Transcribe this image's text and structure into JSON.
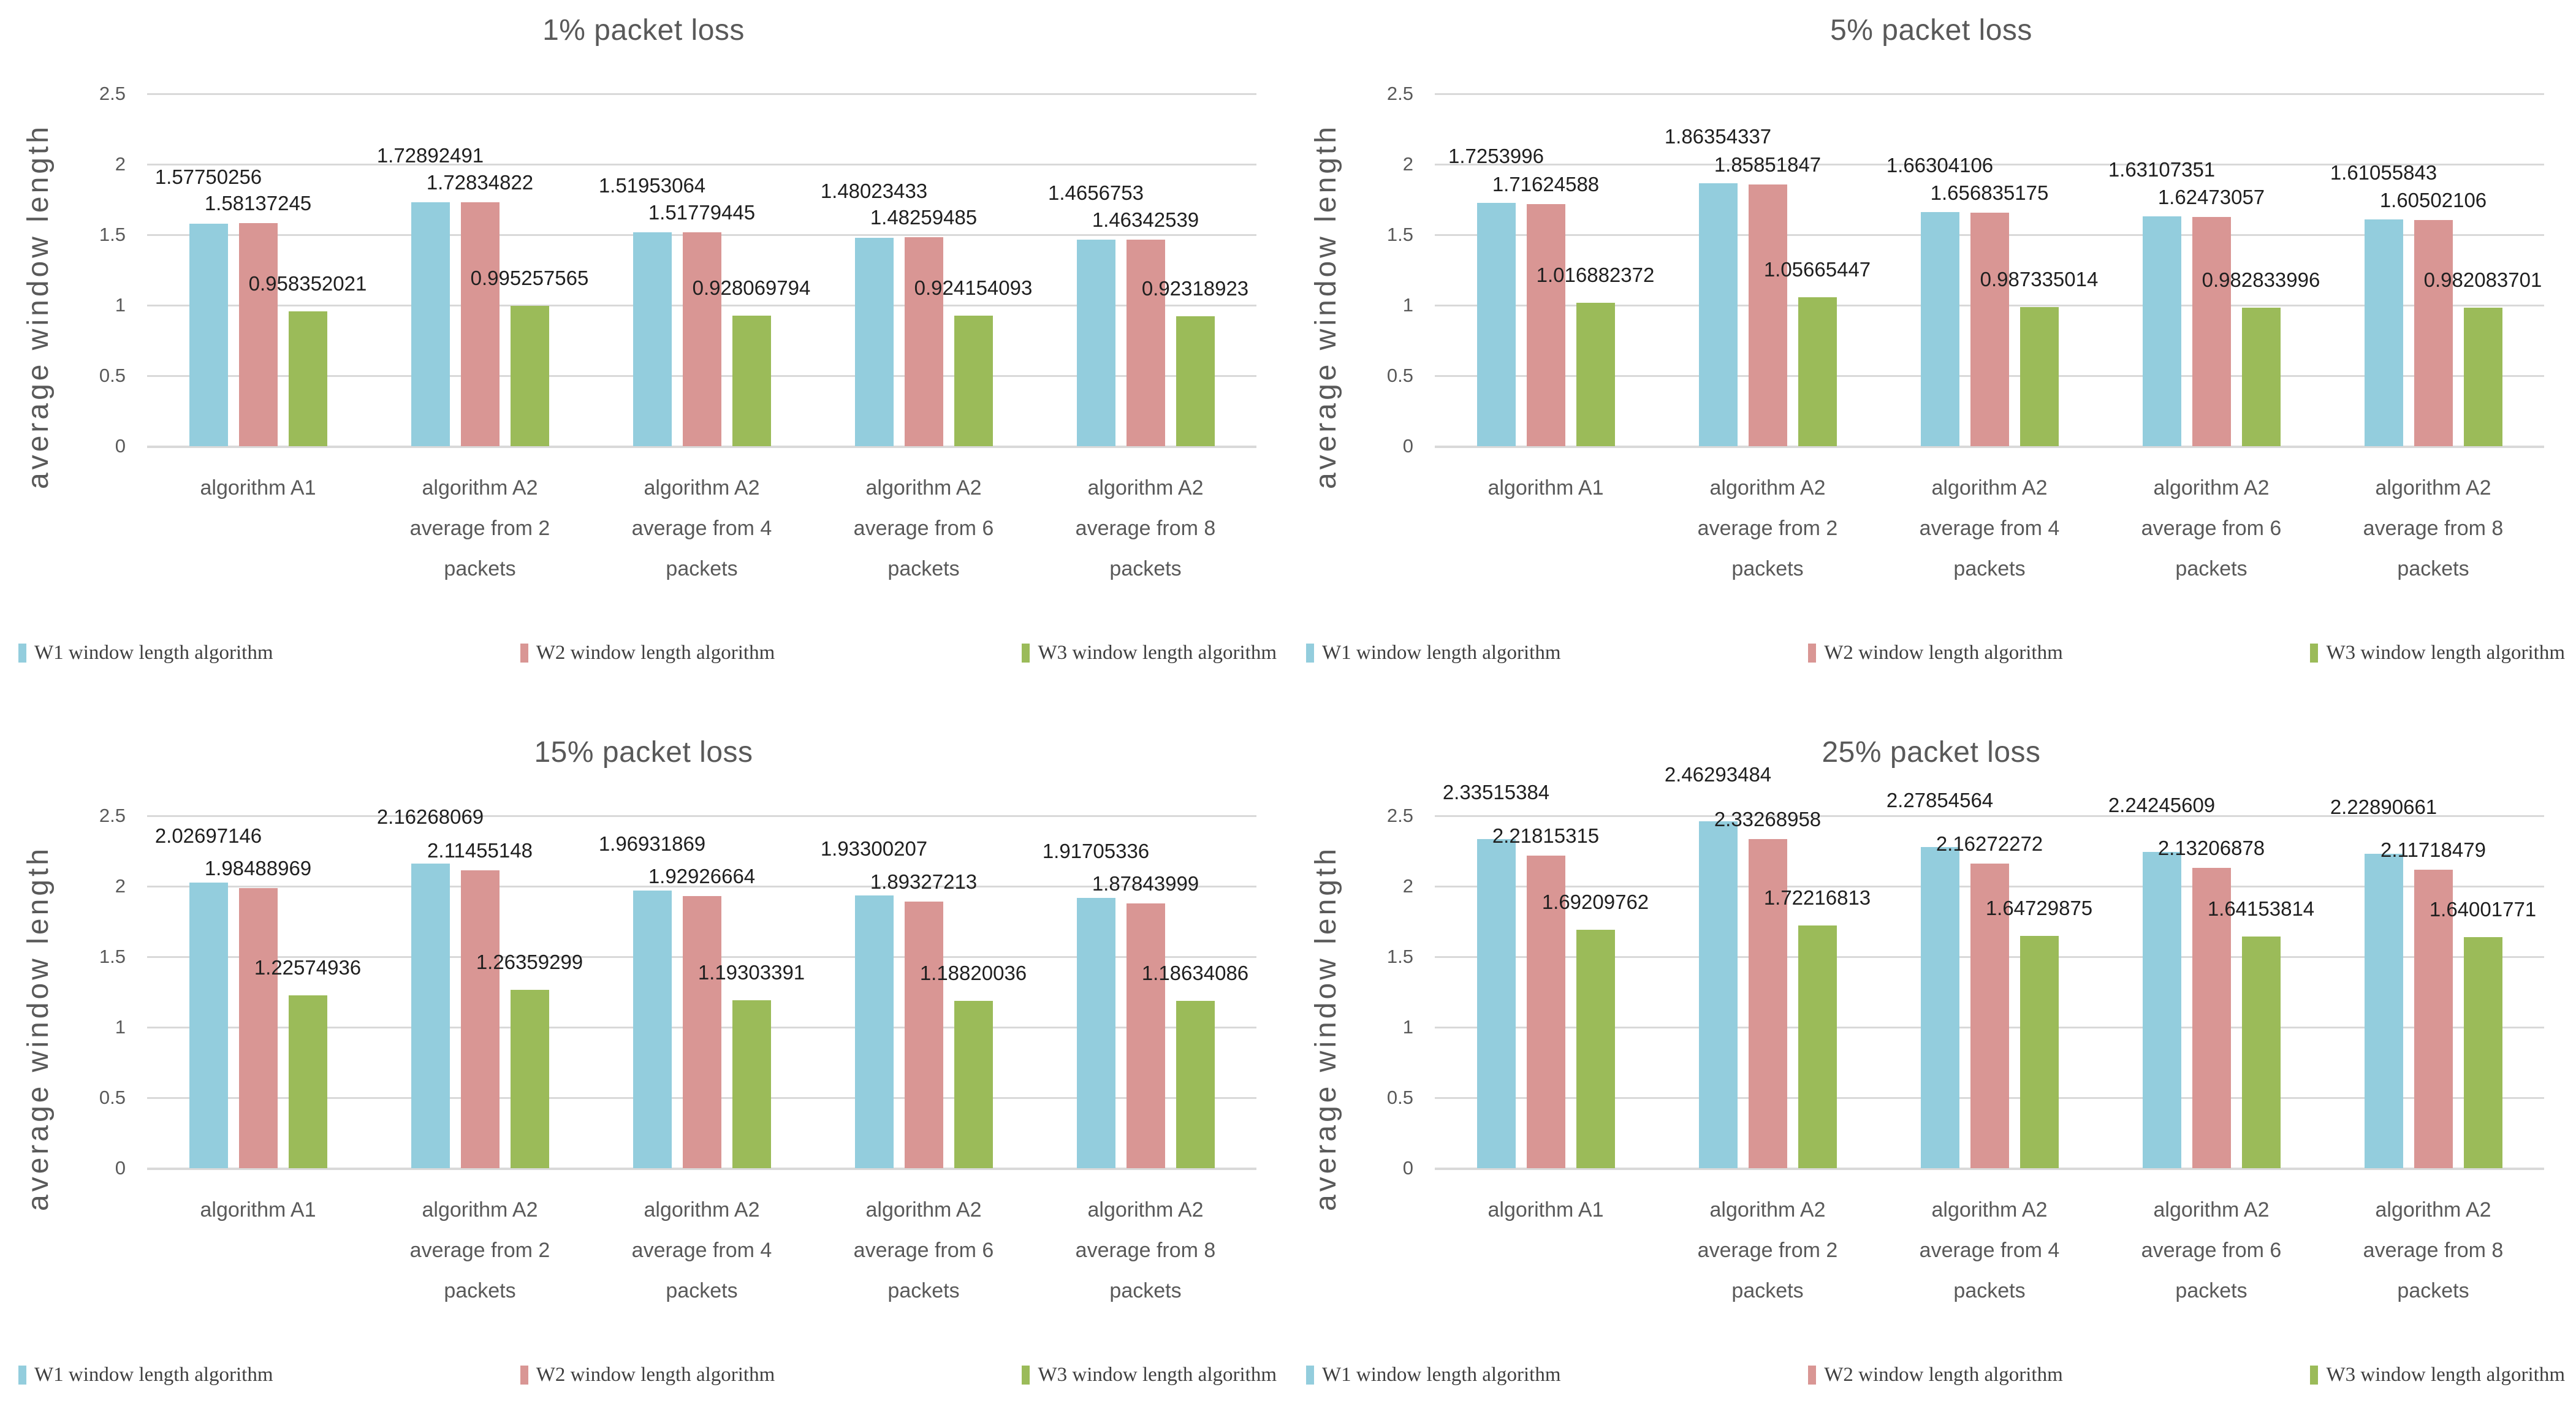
{
  "page_background": "#ffffff",
  "colors": {
    "w1_series": "#93CDDD",
    "w2_series": "#D99694",
    "w3_series": "#9BBB59",
    "gridline": "#D9D9D9",
    "axis_line": "#D9D9D9",
    "heading_text": "#595959",
    "data_label_text": "#1f1f1f",
    "legend_text": "#3f3f3f"
  },
  "y_axis": {
    "title": "average window length",
    "tick_labels": [
      "2.5",
      "2",
      "1.5",
      "1",
      "0.5",
      "0"
    ],
    "min": 0,
    "max": 2.5,
    "step": 0.5
  },
  "legend_labels": [
    "W1 window length algorithm",
    "W2 window length algorithm",
    "W3 window length algorithm"
  ],
  "chart_data": [
    {
      "type": "bar",
      "title": "1% packet loss",
      "xlabel": "",
      "ylabel": "average window length",
      "ylim": [
        0,
        2.5
      ],
      "grid": true,
      "legend_position": "bottom",
      "categories": [
        [
          "algorithm A1"
        ],
        [
          "algorithm A2",
          "average from 2",
          "packets"
        ],
        [
          "algorithm A2",
          "average from 4",
          "packets"
        ],
        [
          "algorithm A2",
          "average from 6",
          "packets"
        ],
        [
          "algorithm A2",
          "average from 8",
          "packets"
        ]
      ],
      "series": [
        {
          "name": "W1 window length algorithm",
          "color": "#93CDDD",
          "values": [
            1.57750256,
            1.72892491,
            1.51953064,
            1.48023433,
            1.4656753
          ]
        },
        {
          "name": "W2 window length algorithm",
          "color": "#D99694",
          "values": [
            1.58137245,
            1.72834822,
            1.51779445,
            1.48259485,
            1.46342539
          ]
        },
        {
          "name": "W3 window length algorithm",
          "color": "#9BBB59",
          "values": [
            0.958352021,
            0.995257565,
            0.928069794,
            0.924154093,
            0.92318923
          ]
        }
      ]
    },
    {
      "type": "bar",
      "title": "5% packet loss",
      "xlabel": "",
      "ylabel": "average window length",
      "ylim": [
        0,
        2.5
      ],
      "grid": true,
      "legend_position": "bottom",
      "categories": [
        [
          "algorithm A1"
        ],
        [
          "algorithm A2",
          "average from 2",
          "packets"
        ],
        [
          "algorithm A2",
          "average from 4",
          "packets"
        ],
        [
          "algorithm A2",
          "average from 6",
          "packets"
        ],
        [
          "algorithm A2",
          "average from 8",
          "packets"
        ]
      ],
      "series": [
        {
          "name": "W1 window length algorithm",
          "color": "#93CDDD",
          "values": [
            1.7253996,
            1.86354337,
            1.66304106,
            1.63107351,
            1.61055843
          ]
        },
        {
          "name": "W2 window length algorithm",
          "color": "#D99694",
          "values": [
            1.71624588,
            1.85851847,
            1.656835175,
            1.62473057,
            1.60502106
          ]
        },
        {
          "name": "W3 window length algorithm",
          "color": "#9BBB59",
          "values": [
            1.016882372,
            1.05665447,
            0.987335014,
            0.982833996,
            0.982083701
          ]
        }
      ]
    },
    {
      "type": "bar",
      "title": "15% packet loss",
      "xlabel": "",
      "ylabel": "average window length",
      "ylim": [
        0,
        2.5
      ],
      "grid": true,
      "legend_position": "bottom",
      "categories": [
        [
          "algorithm A1"
        ],
        [
          "algorithm A2",
          "average from 2",
          "packets"
        ],
        [
          "algorithm A2",
          "average from 4",
          "packets"
        ],
        [
          "algorithm A2",
          "average from 6",
          "packets"
        ],
        [
          "algorithm A2",
          "average from 8",
          "packets"
        ]
      ],
      "series": [
        {
          "name": "W1 window length algorithm",
          "color": "#93CDDD",
          "values": [
            2.02697146,
            2.16268069,
            1.96931869,
            1.93300207,
            1.91705336
          ]
        },
        {
          "name": "W2 window length algorithm",
          "color": "#D99694",
          "values": [
            1.98488969,
            2.11455148,
            1.92926664,
            1.89327213,
            1.87843999
          ]
        },
        {
          "name": "W3 window length algorithm",
          "color": "#9BBB59",
          "values": [
            1.22574936,
            1.26359299,
            1.19303391,
            1.18820036,
            1.18634086
          ]
        }
      ]
    },
    {
      "type": "bar",
      "title": "25% packet loss",
      "xlabel": "",
      "ylabel": "average window length",
      "ylim": [
        0,
        2.5
      ],
      "grid": true,
      "legend_position": "bottom",
      "categories": [
        [
          "algorithm A1"
        ],
        [
          "algorithm A2",
          "average from 2",
          "packets"
        ],
        [
          "algorithm A2",
          "average from 4",
          "packets"
        ],
        [
          "algorithm A2",
          "average from 6",
          "packets"
        ],
        [
          "algorithm A2",
          "average from 8",
          "packets"
        ]
      ],
      "series": [
        {
          "name": "W1 window length algorithm",
          "color": "#93CDDD",
          "values": [
            2.33515384,
            2.46293484,
            2.27854564,
            2.24245609,
            2.22890661
          ]
        },
        {
          "name": "W2 window length algorithm",
          "color": "#D99694",
          "values": [
            2.21815315,
            2.33268958,
            2.16272272,
            2.13206878,
            2.11718479
          ]
        },
        {
          "name": "W3 window length algorithm",
          "color": "#9BBB59",
          "values": [
            1.69209762,
            1.72216813,
            1.64729875,
            1.64153814,
            1.64001771
          ]
        }
      ]
    }
  ]
}
